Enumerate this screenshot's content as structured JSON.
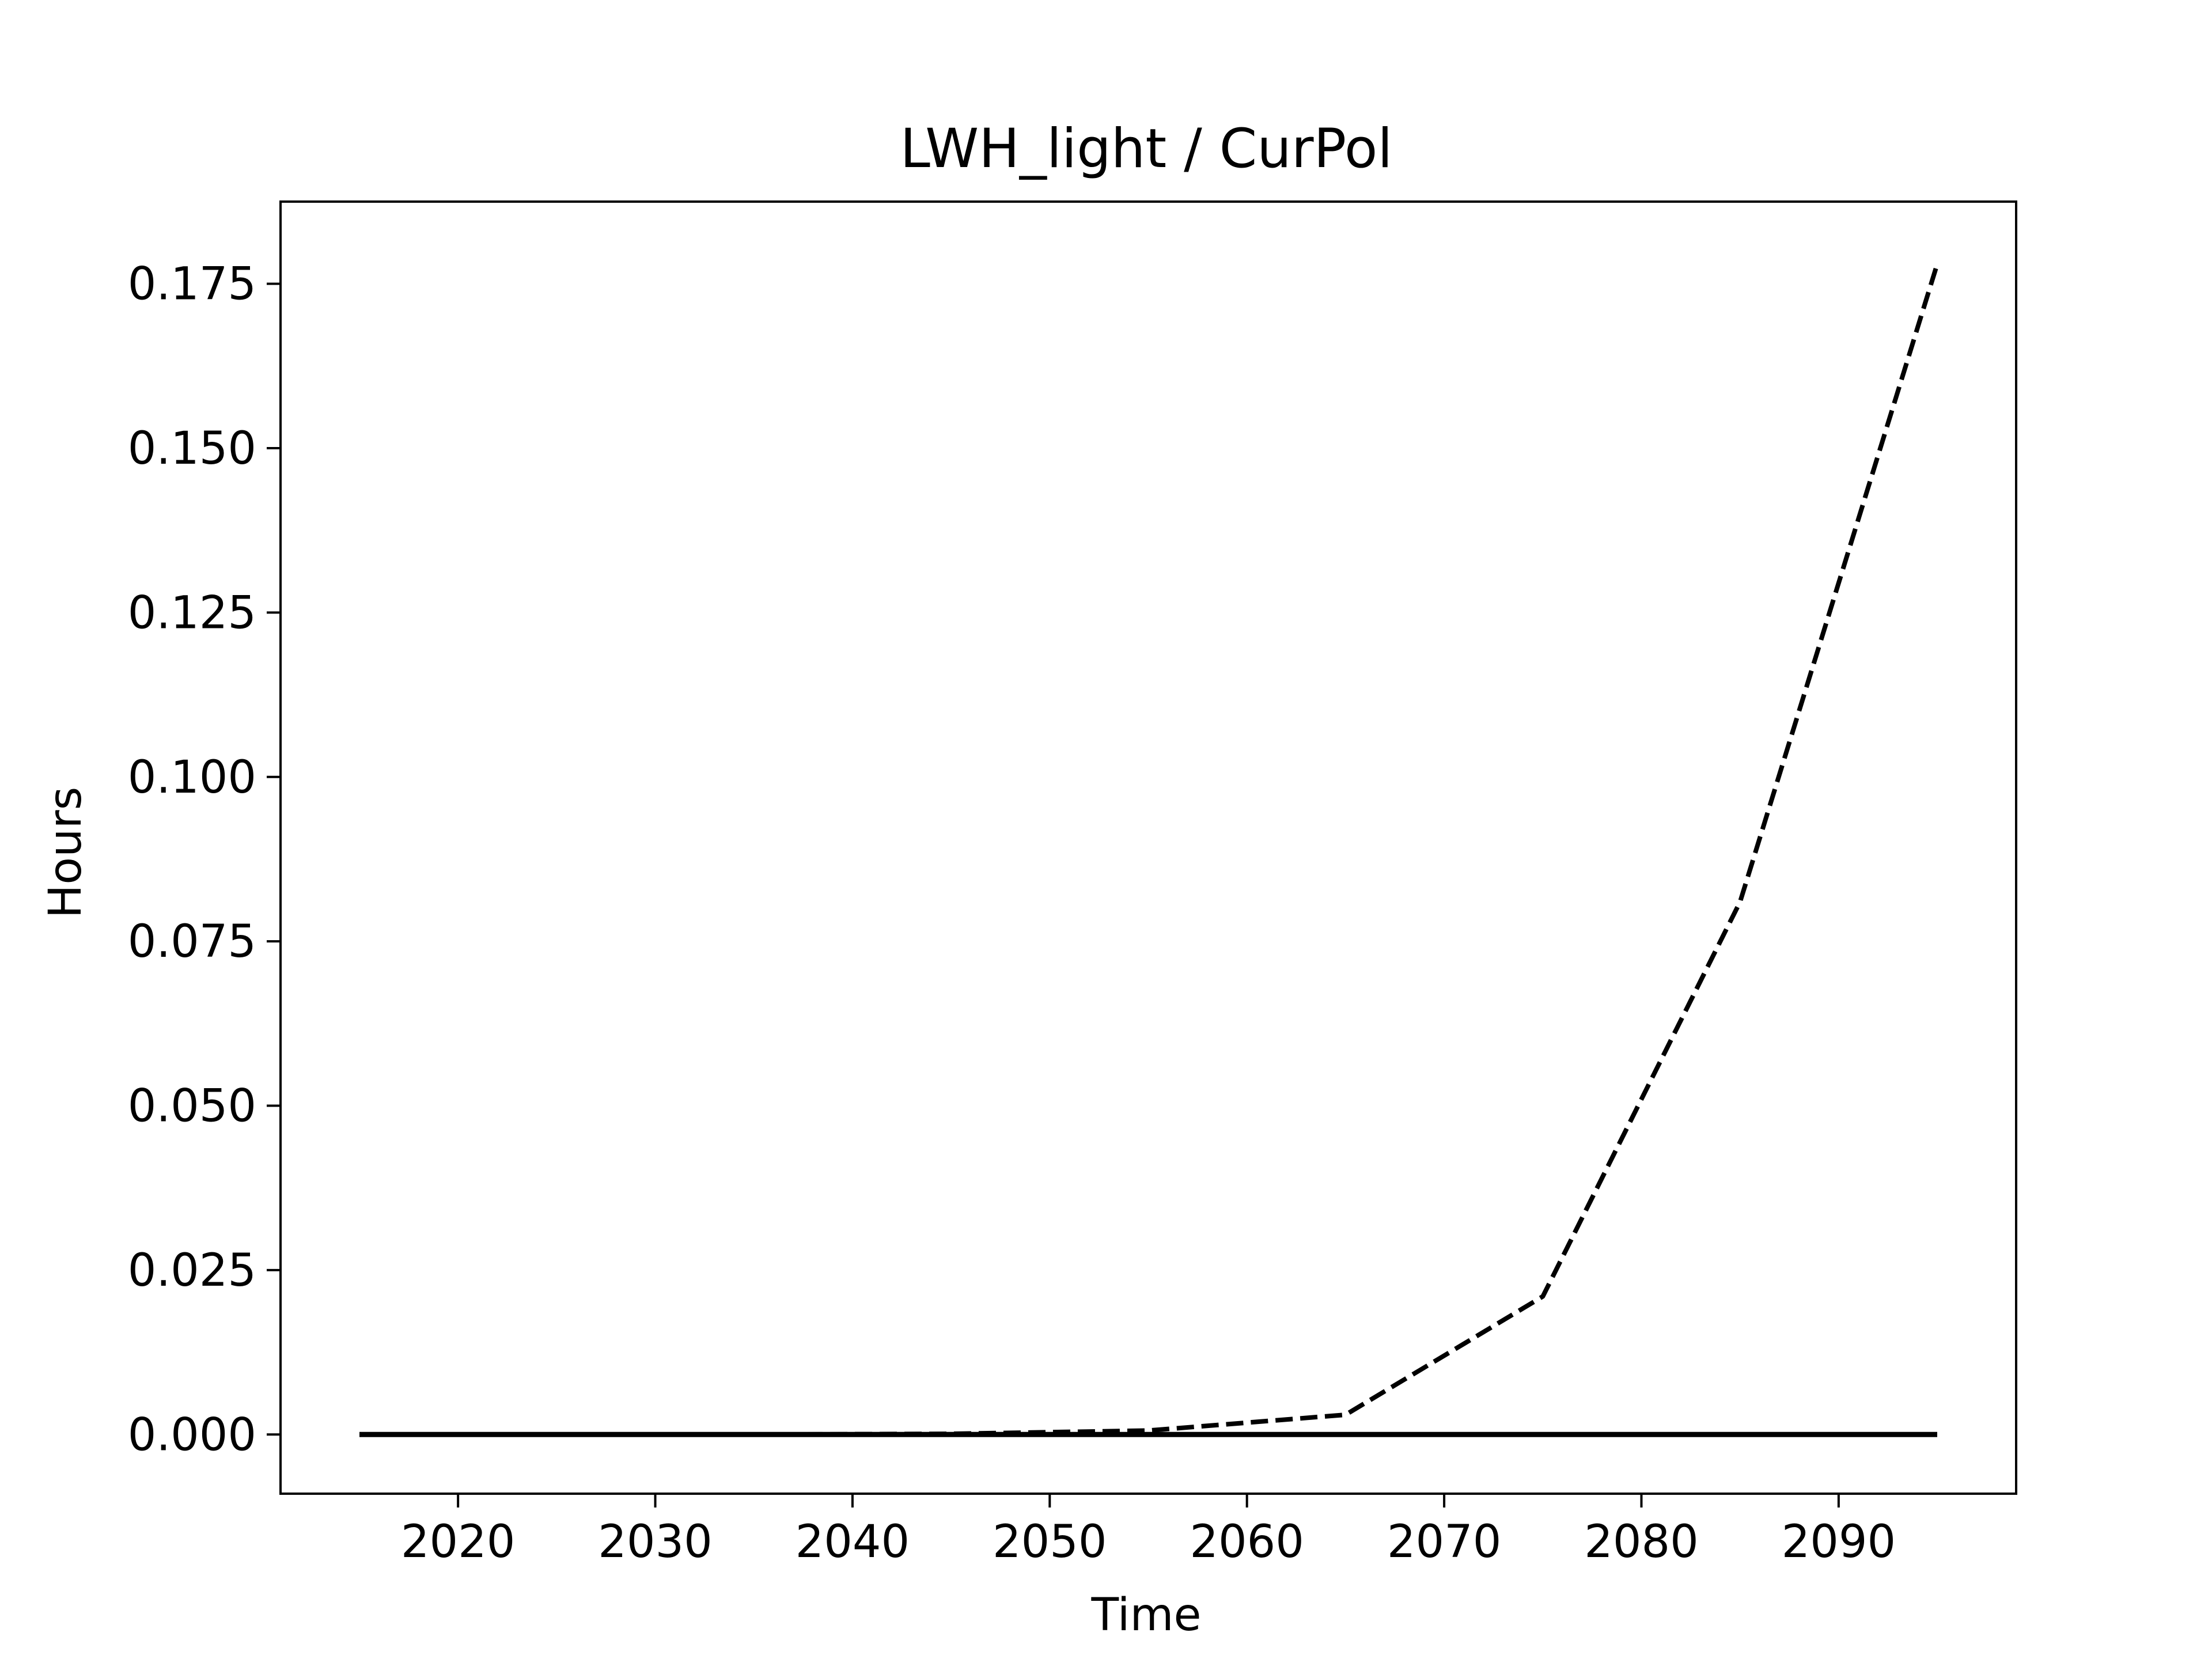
{
  "chart_data": {
    "type": "line",
    "title": "LWH_light / CurPol",
    "xlabel": "Time",
    "ylabel": "Hours",
    "xlim": [
      2011,
      2099
    ],
    "ylim": [
      -0.009,
      0.1875
    ],
    "xticks": [
      2020,
      2030,
      2040,
      2050,
      2060,
      2070,
      2080,
      2090
    ],
    "xtick_labels": [
      "2020",
      "2030",
      "2040",
      "2050",
      "2060",
      "2070",
      "2080",
      "2090"
    ],
    "yticks": [
      0.0,
      0.025,
      0.05,
      0.075,
      0.1,
      0.125,
      0.15,
      0.175
    ],
    "ytick_labels": [
      "0.000",
      "0.025",
      "0.050",
      "0.075",
      "0.100",
      "0.125",
      "0.150",
      "0.175"
    ],
    "grid": false,
    "series": [
      {
        "style": "dashed",
        "color": "#000000",
        "x": [
          2015,
          2025,
          2035,
          2045,
          2055,
          2065,
          2075,
          2085,
          2095
        ],
        "y": [
          0.0,
          0.0,
          0.0,
          0.0001,
          0.0006,
          0.003,
          0.021,
          0.081,
          0.178
        ]
      },
      {
        "style": "solid",
        "color": "#000000",
        "x": [
          2015,
          2025,
          2035,
          2045,
          2055,
          2065,
          2075,
          2085,
          2095
        ],
        "y": [
          0.0,
          0.0,
          0.0,
          0.0,
          0.0,
          0.0,
          0.0,
          0.0,
          0.0
        ]
      }
    ]
  }
}
